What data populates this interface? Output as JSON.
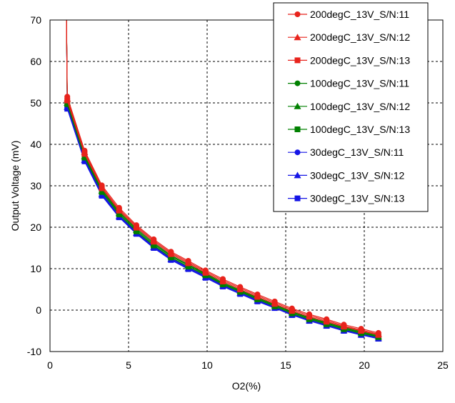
{
  "chart_data": {
    "type": "line",
    "xlabel": "O2(%)",
    "ylabel": "Output Voltage (mV)",
    "xlim": [
      0,
      25
    ],
    "ylim": [
      -10,
      70
    ],
    "xticks": [
      0,
      5,
      10,
      15,
      20,
      25
    ],
    "yticks": [
      -10,
      0,
      10,
      20,
      30,
      40,
      50,
      60,
      70
    ],
    "grid": true,
    "legend_position": "top-right",
    "x": [
      1.1,
      2.2,
      3.3,
      4.4,
      5.5,
      6.6,
      7.7,
      8.8,
      9.9,
      11.0,
      12.1,
      13.2,
      14.3,
      15.4,
      16.5,
      17.6,
      18.7,
      19.8,
      20.9
    ],
    "series": [
      {
        "name": "200degC_13V_S/N:11",
        "color": "#E8231C",
        "marker": "circle",
        "values": [
          51.5,
          38.5,
          30.1,
          24.7,
          20.5,
          17.1,
          14.1,
          11.9,
          9.6,
          7.5,
          5.6,
          3.8,
          2.1,
          0.4,
          -1.0,
          -2.2,
          -3.5,
          -4.5,
          -5.5
        ]
      },
      {
        "name": "200degC_13V_S/N:12",
        "color": "#E8231C",
        "marker": "triangle",
        "values": [
          51.0,
          38.1,
          29.7,
          24.3,
          20.2,
          16.8,
          13.8,
          11.6,
          9.3,
          7.2,
          5.3,
          3.5,
          1.8,
          0.1,
          -1.3,
          -2.5,
          -3.8,
          -4.8,
          -5.8
        ]
      },
      {
        "name": "200degC_13V_S/N:13",
        "color": "#E8231C",
        "marker": "square",
        "values": [
          50.6,
          37.7,
          29.4,
          24.0,
          19.9,
          16.5,
          13.5,
          11.3,
          9.0,
          6.9,
          5.0,
          3.2,
          1.5,
          -0.2,
          -1.6,
          -2.8,
          -4.0,
          -5.0,
          -6.0
        ]
      },
      {
        "name": "100degC_13V_S/N:11",
        "color": "#008000",
        "marker": "circle",
        "values": [
          50.3,
          37.4,
          29.1,
          23.7,
          19.6,
          16.2,
          13.2,
          11.0,
          8.8,
          6.6,
          4.8,
          3.0,
          1.3,
          -0.4,
          -1.8,
          -3.0,
          -4.2,
          -5.2,
          -6.2
        ]
      },
      {
        "name": "100degC_13V_S/N:12",
        "color": "#008000",
        "marker": "triangle",
        "values": [
          50.0,
          37.1,
          28.8,
          23.4,
          19.3,
          15.9,
          13.0,
          10.8,
          8.6,
          6.4,
          4.6,
          2.8,
          1.1,
          -0.6,
          -2.0,
          -3.2,
          -4.4,
          -5.4,
          -6.4
        ]
      },
      {
        "name": "100degC_13V_S/N:13",
        "color": "#008000",
        "marker": "square",
        "values": [
          49.7,
          36.8,
          28.5,
          23.1,
          19.0,
          15.6,
          12.7,
          10.5,
          8.4,
          6.2,
          4.4,
          2.6,
          0.9,
          -0.8,
          -2.2,
          -3.4,
          -4.6,
          -5.6,
          -6.5
        ]
      },
      {
        "name": "30degC_13V_S/N:11",
        "color": "#1414E6",
        "marker": "circle",
        "values": [
          49.3,
          36.5,
          28.2,
          22.8,
          18.8,
          15.4,
          12.5,
          10.3,
          8.2,
          6.0,
          4.2,
          2.4,
          0.7,
          -1.0,
          -2.4,
          -3.6,
          -4.8,
          -5.8,
          -6.7
        ]
      },
      {
        "name": "30degC_13V_S/N:12",
        "color": "#1414E6",
        "marker": "triangle",
        "values": [
          49.0,
          36.2,
          27.9,
          22.6,
          18.6,
          15.2,
          12.3,
          10.1,
          8.0,
          5.9,
          4.1,
          2.3,
          0.6,
          -1.1,
          -2.5,
          -3.7,
          -4.9,
          -5.9,
          -6.8
        ]
      },
      {
        "name": "30degC_13V_S/N:13",
        "color": "#1414E6",
        "marker": "square",
        "values": [
          48.6,
          35.9,
          27.6,
          22.4,
          18.4,
          15.0,
          12.1,
          9.9,
          7.8,
          5.7,
          3.9,
          2.1,
          0.5,
          -1.2,
          -2.6,
          -3.8,
          -5.0,
          -6.0,
          -6.9
        ]
      }
    ]
  }
}
